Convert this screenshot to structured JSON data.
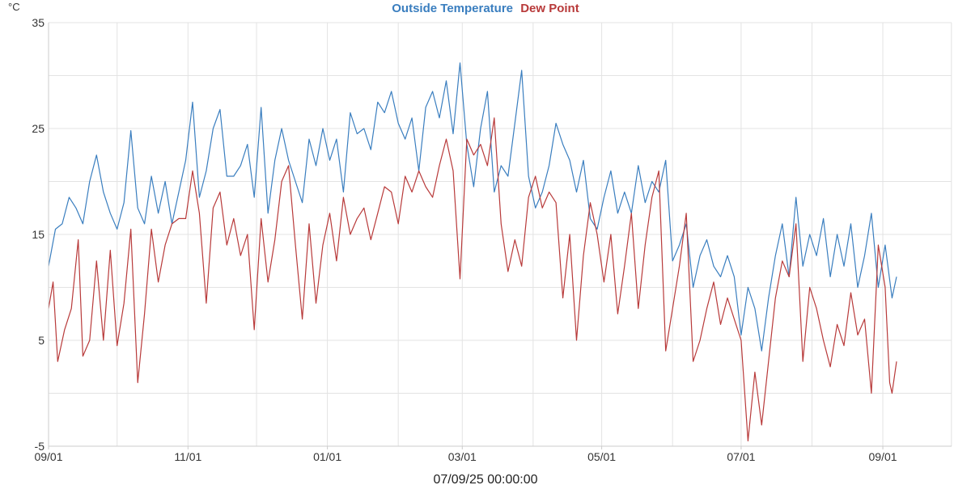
{
  "chart_data": {
    "type": "line",
    "title": "",
    "y_unit": "°C",
    "ylim": [
      -5,
      35
    ],
    "y_ticks": [
      "35",
      "25",
      "15",
      "5",
      "-5"
    ],
    "x_ticks": [
      "09/01",
      "11/01",
      "01/01",
      "03/01",
      "05/01",
      "07/01",
      "09/01"
    ],
    "footer_label": "07/09/25 00:00:00",
    "grid": true,
    "legend_position": "top-center",
    "x_start": "2024-09-01",
    "x_end": "2025-09-07",
    "series": [
      {
        "name": "Outside Temperature",
        "color": "#3a7ebf",
        "points": [
          [
            "2024-09-01",
            12.0
          ],
          [
            "2024-09-04",
            15.5
          ],
          [
            "2024-09-07",
            16.0
          ],
          [
            "2024-09-10",
            18.5
          ],
          [
            "2024-09-13",
            17.5
          ],
          [
            "2024-09-16",
            16.0
          ],
          [
            "2024-09-19",
            20.0
          ],
          [
            "2024-09-22",
            22.5
          ],
          [
            "2024-09-25",
            19.0
          ],
          [
            "2024-09-28",
            17.0
          ],
          [
            "2024-10-01",
            15.5
          ],
          [
            "2024-10-04",
            18.0
          ],
          [
            "2024-10-07",
            24.8
          ],
          [
            "2024-10-10",
            17.5
          ],
          [
            "2024-10-13",
            16.0
          ],
          [
            "2024-10-16",
            20.5
          ],
          [
            "2024-10-19",
            17.0
          ],
          [
            "2024-10-22",
            20.0
          ],
          [
            "2024-10-25",
            16.0
          ],
          [
            "2024-10-28",
            19.0
          ],
          [
            "2024-10-31",
            22.0
          ],
          [
            "2024-11-03",
            27.5
          ],
          [
            "2024-11-06",
            18.5
          ],
          [
            "2024-11-09",
            21.0
          ],
          [
            "2024-11-12",
            25.0
          ],
          [
            "2024-11-15",
            26.8
          ],
          [
            "2024-11-18",
            20.5
          ],
          [
            "2024-11-21",
            20.5
          ],
          [
            "2024-11-24",
            21.5
          ],
          [
            "2024-11-27",
            23.5
          ],
          [
            "2024-11-30",
            18.5
          ],
          [
            "2024-12-03",
            27.0
          ],
          [
            "2024-12-06",
            17.0
          ],
          [
            "2024-12-09",
            22.0
          ],
          [
            "2024-12-12",
            25.0
          ],
          [
            "2024-12-15",
            22.0
          ],
          [
            "2024-12-18",
            20.0
          ],
          [
            "2024-12-21",
            18.0
          ],
          [
            "2024-12-24",
            24.0
          ],
          [
            "2024-12-27",
            21.5
          ],
          [
            "2024-12-30",
            25.0
          ],
          [
            "2025-01-02",
            22.0
          ],
          [
            "2025-01-05",
            24.0
          ],
          [
            "2025-01-08",
            19.0
          ],
          [
            "2025-01-11",
            26.5
          ],
          [
            "2025-01-14",
            24.5
          ],
          [
            "2025-01-17",
            25.0
          ],
          [
            "2025-01-20",
            23.0
          ],
          [
            "2025-01-23",
            27.5
          ],
          [
            "2025-01-26",
            26.5
          ],
          [
            "2025-01-29",
            28.5
          ],
          [
            "2025-02-01",
            25.5
          ],
          [
            "2025-02-04",
            24.0
          ],
          [
            "2025-02-07",
            26.0
          ],
          [
            "2025-02-10",
            21.0
          ],
          [
            "2025-02-13",
            27.0
          ],
          [
            "2025-02-16",
            28.5
          ],
          [
            "2025-02-19",
            26.0
          ],
          [
            "2025-02-22",
            29.5
          ],
          [
            "2025-02-25",
            24.5
          ],
          [
            "2025-02-28",
            31.2
          ],
          [
            "2025-03-03",
            23.5
          ],
          [
            "2025-03-06",
            19.5
          ],
          [
            "2025-03-09",
            25.0
          ],
          [
            "2025-03-12",
            28.5
          ],
          [
            "2025-03-15",
            19.0
          ],
          [
            "2025-03-18",
            21.5
          ],
          [
            "2025-03-21",
            20.5
          ],
          [
            "2025-03-24",
            25.5
          ],
          [
            "2025-03-27",
            30.5
          ],
          [
            "2025-03-30",
            20.5
          ],
          [
            "2025-04-02",
            17.5
          ],
          [
            "2025-04-05",
            19.0
          ],
          [
            "2025-04-08",
            21.5
          ],
          [
            "2025-04-11",
            25.5
          ],
          [
            "2025-04-14",
            23.5
          ],
          [
            "2025-04-17",
            22.0
          ],
          [
            "2025-04-20",
            19.0
          ],
          [
            "2025-04-23",
            22.0
          ],
          [
            "2025-04-26",
            16.5
          ],
          [
            "2025-04-29",
            15.5
          ],
          [
            "2025-05-02",
            18.5
          ],
          [
            "2025-05-05",
            21.0
          ],
          [
            "2025-05-08",
            17.0
          ],
          [
            "2025-05-11",
            19.0
          ],
          [
            "2025-05-14",
            17.0
          ],
          [
            "2025-05-17",
            21.5
          ],
          [
            "2025-05-20",
            18.0
          ],
          [
            "2025-05-23",
            20.0
          ],
          [
            "2025-05-26",
            19.0
          ],
          [
            "2025-05-29",
            22.0
          ],
          [
            "2025-06-01",
            12.5
          ],
          [
            "2025-06-04",
            14.0
          ],
          [
            "2025-06-07",
            16.0
          ],
          [
            "2025-06-10",
            10.0
          ],
          [
            "2025-06-13",
            13.0
          ],
          [
            "2025-06-16",
            14.5
          ],
          [
            "2025-06-19",
            12.0
          ],
          [
            "2025-06-22",
            11.0
          ],
          [
            "2025-06-25",
            13.0
          ],
          [
            "2025-06-28",
            11.0
          ],
          [
            "2025-07-01",
            5.5
          ],
          [
            "2025-07-04",
            10.0
          ],
          [
            "2025-07-07",
            8.0
          ],
          [
            "2025-07-10",
            4.0
          ],
          [
            "2025-07-13",
            9.0
          ],
          [
            "2025-07-16",
            13.0
          ],
          [
            "2025-07-19",
            16.0
          ],
          [
            "2025-07-22",
            11.0
          ],
          [
            "2025-07-25",
            18.5
          ],
          [
            "2025-07-28",
            12.0
          ],
          [
            "2025-07-31",
            15.0
          ],
          [
            "2025-08-03",
            13.0
          ],
          [
            "2025-08-06",
            16.5
          ],
          [
            "2025-08-09",
            11.0
          ],
          [
            "2025-08-12",
            15.0
          ],
          [
            "2025-08-15",
            12.0
          ],
          [
            "2025-08-18",
            16.0
          ],
          [
            "2025-08-21",
            10.0
          ],
          [
            "2025-08-24",
            13.0
          ],
          [
            "2025-08-27",
            17.0
          ],
          [
            "2025-08-30",
            10.0
          ],
          [
            "2025-09-02",
            14.0
          ],
          [
            "2025-09-05",
            9.0
          ],
          [
            "2025-09-07",
            11.0
          ]
        ]
      },
      {
        "name": "Dew Point",
        "color": "#b83a3a",
        "points": [
          [
            "2024-09-01",
            8.0
          ],
          [
            "2024-09-03",
            10.5
          ],
          [
            "2024-09-05",
            3.0
          ],
          [
            "2024-09-08",
            6.0
          ],
          [
            "2024-09-11",
            8.0
          ],
          [
            "2024-09-14",
            14.5
          ],
          [
            "2024-09-16",
            3.5
          ],
          [
            "2024-09-19",
            5.0
          ],
          [
            "2024-09-22",
            12.5
          ],
          [
            "2024-09-25",
            5.0
          ],
          [
            "2024-09-28",
            13.5
          ],
          [
            "2024-10-01",
            4.5
          ],
          [
            "2024-10-04",
            8.5
          ],
          [
            "2024-10-07",
            15.5
          ],
          [
            "2024-10-10",
            1.0
          ],
          [
            "2024-10-13",
            7.5
          ],
          [
            "2024-10-16",
            15.5
          ],
          [
            "2024-10-19",
            10.5
          ],
          [
            "2024-10-22",
            14.0
          ],
          [
            "2024-10-25",
            16.0
          ],
          [
            "2024-10-28",
            16.5
          ],
          [
            "2024-10-31",
            16.5
          ],
          [
            "2024-11-03",
            21.0
          ],
          [
            "2024-11-06",
            17.0
          ],
          [
            "2024-11-09",
            8.5
          ],
          [
            "2024-11-12",
            17.5
          ],
          [
            "2024-11-15",
            19.0
          ],
          [
            "2024-11-18",
            14.0
          ],
          [
            "2024-11-21",
            16.5
          ],
          [
            "2024-11-24",
            13.0
          ],
          [
            "2024-11-27",
            15.0
          ],
          [
            "2024-11-30",
            6.0
          ],
          [
            "2024-12-03",
            16.5
          ],
          [
            "2024-12-06",
            10.5
          ],
          [
            "2024-12-09",
            14.5
          ],
          [
            "2024-12-12",
            20.0
          ],
          [
            "2024-12-15",
            21.5
          ],
          [
            "2024-12-18",
            14.0
          ],
          [
            "2024-12-21",
            7.0
          ],
          [
            "2024-12-24",
            16.0
          ],
          [
            "2024-12-27",
            8.5
          ],
          [
            "2024-12-30",
            14.0
          ],
          [
            "2025-01-02",
            17.0
          ],
          [
            "2025-01-05",
            12.5
          ],
          [
            "2025-01-08",
            18.5
          ],
          [
            "2025-01-11",
            15.0
          ],
          [
            "2025-01-14",
            16.5
          ],
          [
            "2025-01-17",
            17.5
          ],
          [
            "2025-01-20",
            14.5
          ],
          [
            "2025-01-23",
            17.0
          ],
          [
            "2025-01-26",
            19.5
          ],
          [
            "2025-01-29",
            19.0
          ],
          [
            "2025-02-01",
            16.0
          ],
          [
            "2025-02-04",
            20.5
          ],
          [
            "2025-02-07",
            19.0
          ],
          [
            "2025-02-10",
            21.0
          ],
          [
            "2025-02-13",
            19.5
          ],
          [
            "2025-02-16",
            18.5
          ],
          [
            "2025-02-19",
            21.5
          ],
          [
            "2025-02-22",
            24.0
          ],
          [
            "2025-02-25",
            21.0
          ],
          [
            "2025-02-28",
            10.8
          ],
          [
            "2025-03-03",
            24.0
          ],
          [
            "2025-03-06",
            22.5
          ],
          [
            "2025-03-09",
            23.5
          ],
          [
            "2025-03-12",
            21.5
          ],
          [
            "2025-03-15",
            26.0
          ],
          [
            "2025-03-18",
            16.0
          ],
          [
            "2025-03-21",
            11.5
          ],
          [
            "2025-03-24",
            14.5
          ],
          [
            "2025-03-27",
            12.0
          ],
          [
            "2025-03-30",
            18.5
          ],
          [
            "2025-04-02",
            20.5
          ],
          [
            "2025-04-05",
            17.5
          ],
          [
            "2025-04-08",
            19.0
          ],
          [
            "2025-04-11",
            18.0
          ],
          [
            "2025-04-14",
            9.0
          ],
          [
            "2025-04-17",
            15.0
          ],
          [
            "2025-04-20",
            5.0
          ],
          [
            "2025-04-23",
            13.0
          ],
          [
            "2025-04-26",
            18.0
          ],
          [
            "2025-04-29",
            15.0
          ],
          [
            "2025-05-02",
            10.5
          ],
          [
            "2025-05-05",
            15.0
          ],
          [
            "2025-05-08",
            7.5
          ],
          [
            "2025-05-11",
            12.0
          ],
          [
            "2025-05-14",
            17.0
          ],
          [
            "2025-05-17",
            8.0
          ],
          [
            "2025-05-20",
            14.0
          ],
          [
            "2025-05-23",
            18.5
          ],
          [
            "2025-05-26",
            21.0
          ],
          [
            "2025-05-29",
            4.0
          ],
          [
            "2025-06-01",
            8.0
          ],
          [
            "2025-06-04",
            12.0
          ],
          [
            "2025-06-07",
            17.0
          ],
          [
            "2025-06-10",
            3.0
          ],
          [
            "2025-06-13",
            5.0
          ],
          [
            "2025-06-16",
            8.0
          ],
          [
            "2025-06-19",
            10.5
          ],
          [
            "2025-06-22",
            6.5
          ],
          [
            "2025-06-25",
            9.0
          ],
          [
            "2025-06-28",
            7.0
          ],
          [
            "2025-07-01",
            5.0
          ],
          [
            "2025-07-04",
            -4.5
          ],
          [
            "2025-07-07",
            2.0
          ],
          [
            "2025-07-10",
            -3.0
          ],
          [
            "2025-07-13",
            3.0
          ],
          [
            "2025-07-16",
            9.0
          ],
          [
            "2025-07-19",
            12.5
          ],
          [
            "2025-07-22",
            11.0
          ],
          [
            "2025-07-25",
            16.0
          ],
          [
            "2025-07-28",
            3.0
          ],
          [
            "2025-07-31",
            10.0
          ],
          [
            "2025-08-03",
            8.0
          ],
          [
            "2025-08-06",
            5.0
          ],
          [
            "2025-08-09",
            2.5
          ],
          [
            "2025-08-12",
            6.5
          ],
          [
            "2025-08-15",
            4.5
          ],
          [
            "2025-08-18",
            9.5
          ],
          [
            "2025-08-21",
            5.5
          ],
          [
            "2025-08-24",
            7.0
          ],
          [
            "2025-08-27",
            0.0
          ],
          [
            "2025-08-30",
            14.0
          ],
          [
            "2025-09-02",
            10.0
          ],
          [
            "2025-09-04",
            1.0
          ],
          [
            "2025-09-05",
            0.0
          ],
          [
            "2025-09-07",
            3.0
          ]
        ]
      }
    ]
  }
}
